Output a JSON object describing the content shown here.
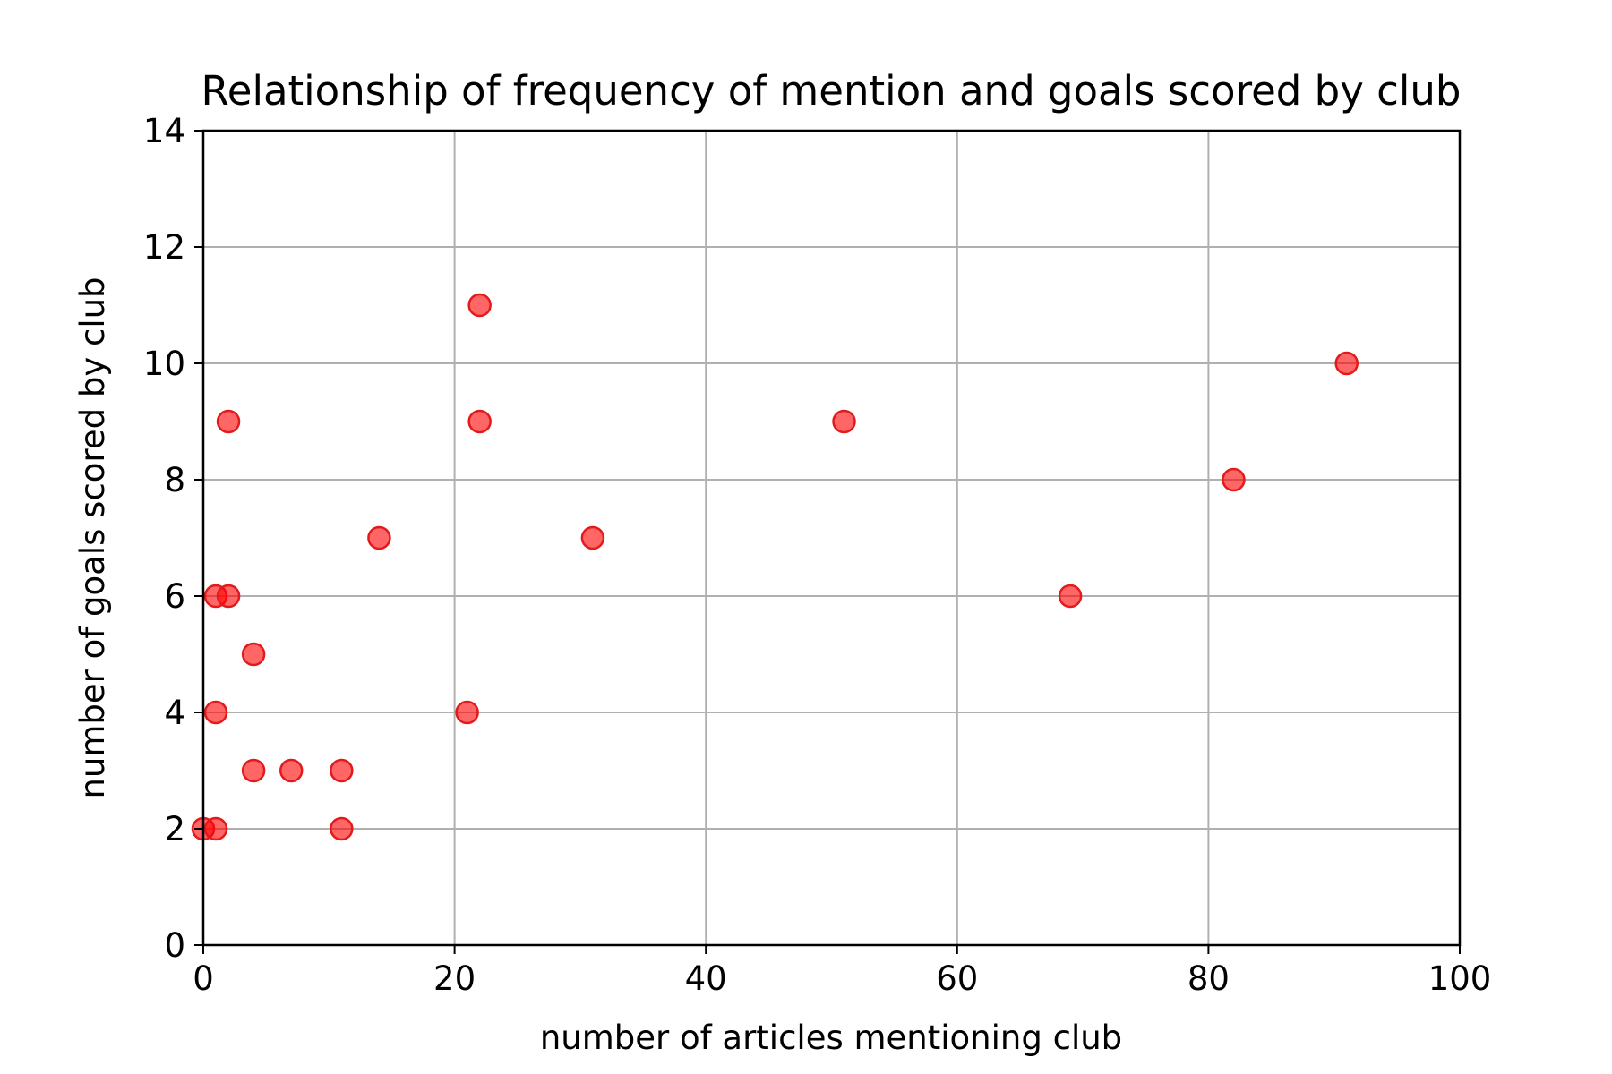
{
  "chart_data": {
    "type": "scatter",
    "title": "Relationship of frequency of mention and goals scored by club",
    "xlabel": "number of articles mentioning club",
    "ylabel": "number of goals scored by club",
    "xlim": [
      0,
      100
    ],
    "ylim": [
      0,
      14
    ],
    "xticks": [
      0,
      20,
      40,
      60,
      80,
      100
    ],
    "yticks": [
      0,
      2,
      4,
      6,
      8,
      10,
      12,
      14
    ],
    "xtick_labels": [
      "0",
      "20",
      "40",
      "60",
      "80",
      "100"
    ],
    "ytick_labels": [
      "0",
      "2",
      "4",
      "6",
      "8",
      "10",
      "12",
      "14"
    ],
    "grid": true,
    "marker_color": "#ff0000",
    "marker_edge_color": "#e31a1c",
    "points": [
      {
        "x": 0,
        "y": 2
      },
      {
        "x": 1,
        "y": 2
      },
      {
        "x": 1,
        "y": 4
      },
      {
        "x": 1,
        "y": 6
      },
      {
        "x": 2,
        "y": 6
      },
      {
        "x": 2,
        "y": 9
      },
      {
        "x": 4,
        "y": 5
      },
      {
        "x": 4,
        "y": 3
      },
      {
        "x": 7,
        "y": 3
      },
      {
        "x": 11,
        "y": 3
      },
      {
        "x": 11,
        "y": 2
      },
      {
        "x": 14,
        "y": 7
      },
      {
        "x": 21,
        "y": 4
      },
      {
        "x": 22,
        "y": 9
      },
      {
        "x": 22,
        "y": 11
      },
      {
        "x": 31,
        "y": 7
      },
      {
        "x": 51,
        "y": 9
      },
      {
        "x": 69,
        "y": 6
      },
      {
        "x": 82,
        "y": 8
      },
      {
        "x": 91,
        "y": 10
      }
    ]
  }
}
